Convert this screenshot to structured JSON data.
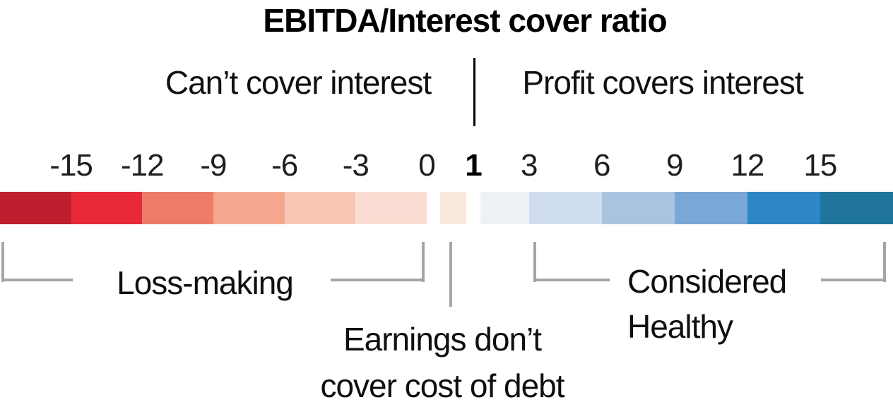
{
  "header": {
    "title": "EBITDA/Interest cover ratio"
  },
  "zones": {
    "left_label": "Can’t cover interest",
    "right_label": "Profit covers interest"
  },
  "chart_data": {
    "type": "heatmap",
    "subtype": "diverging-color-scale-number-line",
    "title": "EBITDA/Interest cover ratio",
    "xlim": [
      -18,
      18
    ],
    "grid": false,
    "zone_labels": [
      {
        "side": "left",
        "label": "Can’t cover interest"
      },
      {
        "side": "right",
        "label": "Profit covers interest"
      }
    ],
    "ticks": [
      {
        "value": -15,
        "label": "-15",
        "bold": false
      },
      {
        "value": -12,
        "label": "-12",
        "bold": false
      },
      {
        "value": -9,
        "label": "-9",
        "bold": false
      },
      {
        "value": -6,
        "label": "-6",
        "bold": false
      },
      {
        "value": -3,
        "label": "-3",
        "bold": false
      },
      {
        "value": 0,
        "label": "0",
        "bold": false
      },
      {
        "value": 1,
        "label": "1",
        "bold": true
      },
      {
        "value": 3,
        "label": "3",
        "bold": false
      },
      {
        "value": 6,
        "label": "6",
        "bold": false
      },
      {
        "value": 9,
        "label": "9",
        "bold": false
      },
      {
        "value": 12,
        "label": "12",
        "bold": false
      },
      {
        "value": 15,
        "label": "15",
        "bold": false
      }
    ],
    "segments": [
      {
        "from": -18,
        "to": -15,
        "color": "#be1e2d"
      },
      {
        "from": -15,
        "to": -12,
        "color": "#e8293a"
      },
      {
        "from": -12,
        "to": -9,
        "color": "#ee7b66"
      },
      {
        "from": -9,
        "to": -6,
        "color": "#f4a78f"
      },
      {
        "from": -6,
        "to": -3,
        "color": "#f7c6b4"
      },
      {
        "from": -3,
        "to": 0,
        "color": "#faddd2"
      },
      {
        "from": 0,
        "to": 1,
        "color": "#fbe9de",
        "detached": true
      },
      {
        "from": 1,
        "to": 3,
        "color": "#eff2f5"
      },
      {
        "from": 3,
        "to": 6,
        "color": "#cfddef"
      },
      {
        "from": 6,
        "to": 9,
        "color": "#a9c4e0"
      },
      {
        "from": 9,
        "to": 12,
        "color": "#7aa6d8"
      },
      {
        "from": 12,
        "to": 15,
        "color": "#2d87c6"
      },
      {
        "from": 15,
        "to": 18,
        "color": "#20759d"
      }
    ],
    "annotations": [
      {
        "label": "Loss-making",
        "from": -18,
        "to": 0
      },
      {
        "label": "Earnings don’t\ncover cost of debt",
        "from": 0,
        "to": 1
      },
      {
        "label": "Considered\nHealthy",
        "from": 3,
        "to": 18
      }
    ],
    "colors": {
      "bracket_gray": "#a5a5a5",
      "divider_black": "#000000",
      "negative_end": "#be1e2d",
      "positive_end": "#20759d"
    },
    "legend_position": "none"
  }
}
